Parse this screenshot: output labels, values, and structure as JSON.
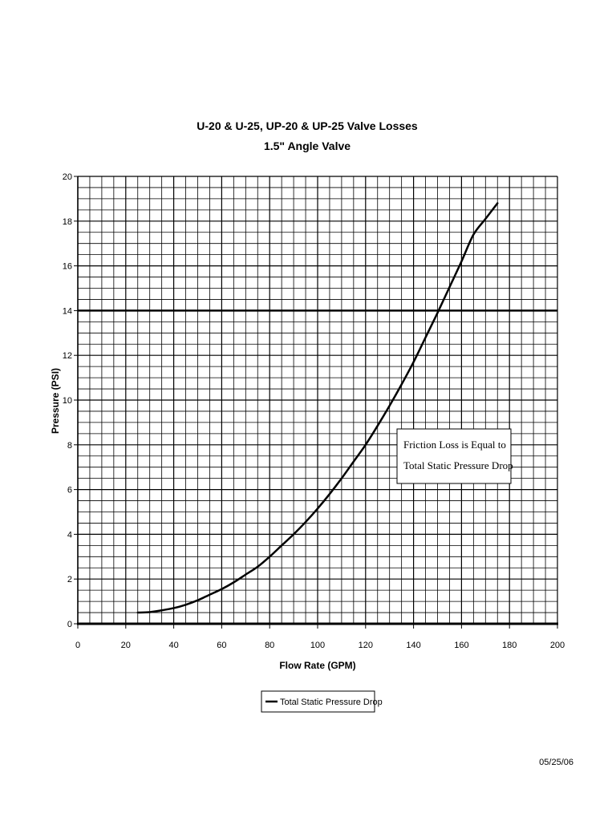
{
  "chart_data": {
    "type": "line",
    "title": "U-20 & U-25, UP-20 & UP-25 Valve Losses",
    "subtitle": "1.5\" Angle Valve",
    "xlabel": "Flow Rate (GPM)",
    "ylabel": "Pressure (PSI)",
    "xlim": [
      0,
      200
    ],
    "ylim": [
      0,
      20
    ],
    "x_ticks": [
      "0",
      "20",
      "40",
      "60",
      "80",
      "100",
      "120",
      "140",
      "160",
      "180",
      "200"
    ],
    "y_ticks": [
      "0",
      "2",
      "4",
      "6",
      "8",
      "10",
      "12",
      "14",
      "16",
      "18",
      "20"
    ],
    "grid": true,
    "reference_lines": [
      {
        "axis": "y",
        "value": 14
      }
    ],
    "series": [
      {
        "name": "Total Static Pressure Drop",
        "color": "#000000",
        "x": [
          25,
          30,
          35,
          40,
          45,
          50,
          55,
          60,
          65,
          70,
          75,
          80,
          85,
          90,
          95,
          100,
          105,
          110,
          115,
          120,
          125,
          130,
          135,
          140,
          145,
          150,
          155,
          160,
          165,
          170,
          175
        ],
        "y": [
          0.5,
          0.52,
          0.6,
          0.7,
          0.85,
          1.05,
          1.3,
          1.55,
          1.85,
          2.2,
          2.55,
          3.0,
          3.5,
          4.0,
          4.55,
          5.15,
          5.8,
          6.5,
          7.25,
          8.0,
          8.85,
          9.75,
          10.7,
          11.7,
          12.8,
          13.9,
          15.05,
          16.2,
          17.4,
          18.1,
          18.8
        ]
      }
    ],
    "annotation": {
      "line1": "Friction Loss is Equal to",
      "line2": "Total Static Pressure Drop"
    },
    "legend": {
      "position": "bottom",
      "label": "Total Static Pressure Drop"
    }
  },
  "footer": {
    "date": "05/25/06"
  }
}
